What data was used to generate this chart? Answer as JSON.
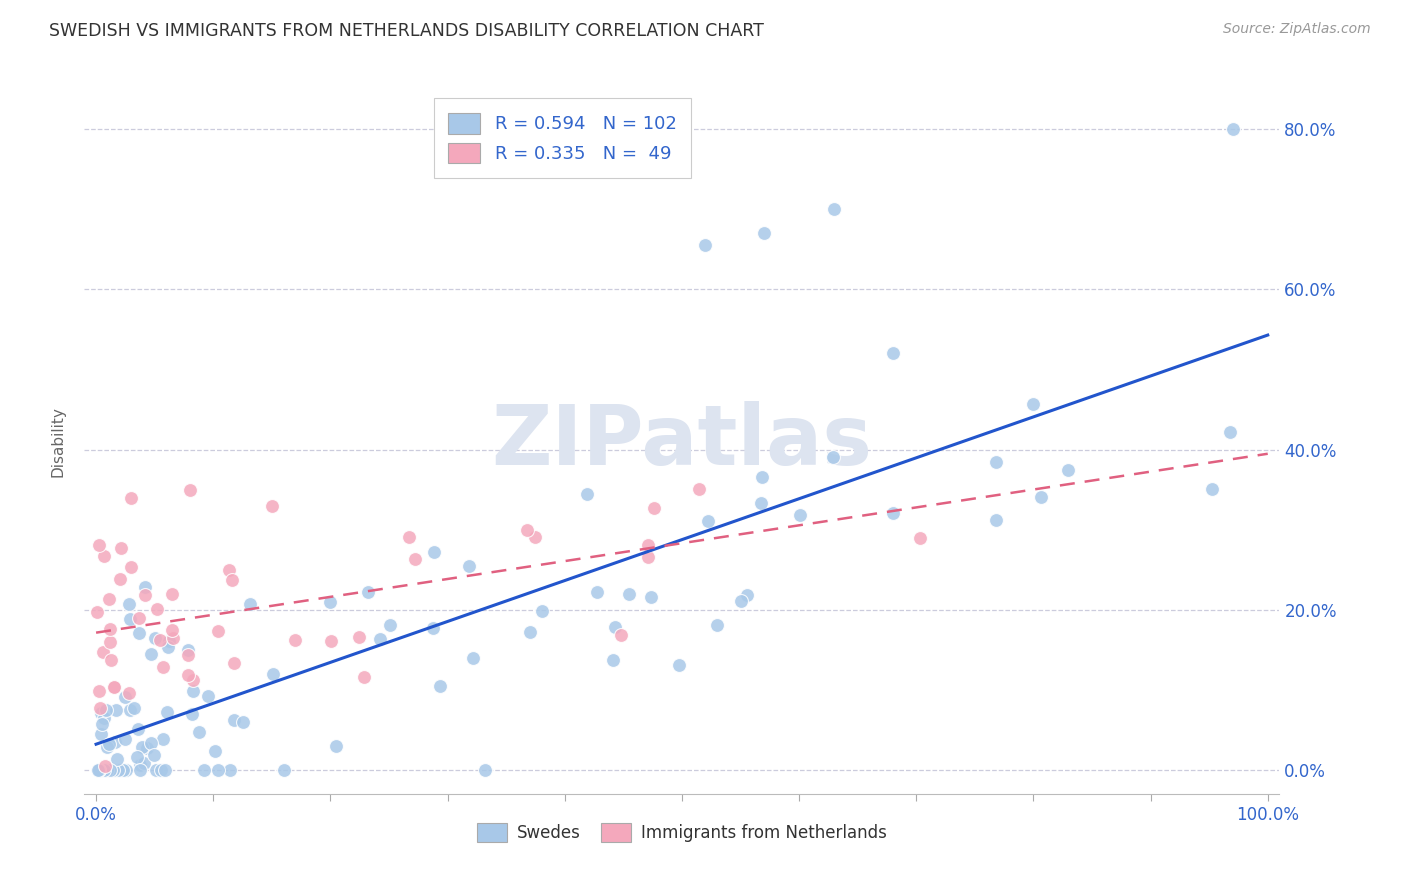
{
  "title": "SWEDISH VS IMMIGRANTS FROM NETHERLANDS DISABILITY CORRELATION CHART",
  "source": "Source: ZipAtlas.com",
  "ylabel": "Disability",
  "legend_label1": "Swedes",
  "legend_label2": "Immigrants from Netherlands",
  "r1": 0.594,
  "n1": 102,
  "r2": 0.335,
  "n2": 49,
  "color_blue": "#a8c8e8",
  "color_pink": "#f4a8bc",
  "color_blue_line": "#2255cc",
  "color_pink_line": "#e06080",
  "color_blue_text": "#3366cc",
  "watermark": "ZIPatlas",
  "xlim": [
    0,
    100
  ],
  "ylim": [
    0,
    80
  ],
  "yticks": [
    0,
    20,
    40,
    60,
    80
  ],
  "xtick_labels_show": [
    "0.0%",
    "100.0%"
  ],
  "ytick_labels": [
    "0.0%",
    "20.0%",
    "40.0%",
    "60.0%",
    "80.0%"
  ],
  "seed": 15
}
